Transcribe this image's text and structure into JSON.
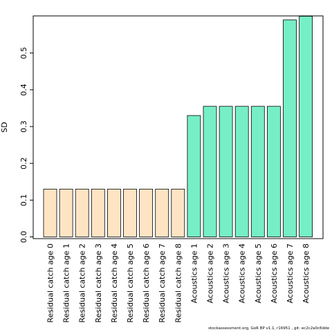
{
  "chart_data": {
    "type": "bar",
    "ylabel": "SD",
    "ylim": [
      0,
      0.6
    ],
    "yticks": [
      "0.0",
      "0.1",
      "0.2",
      "0.3",
      "0.4",
      "0.5"
    ],
    "categories": [
      "Residual catch age 0",
      "Residual catch age 1",
      "Residual catch age 2",
      "Residual catch age 3",
      "Residual catch age 4",
      "Residual catch age 5",
      "Residual catch age 6",
      "Residual catch age 7",
      "Residual catch age 8",
      "Acoustics age 1",
      "Acoustics age 2",
      "Acoustics age 3",
      "Acoustics age 4",
      "Acoustics age 5",
      "Acoustics age 6",
      "Acoustics age 7",
      "Acoustics age 8"
    ],
    "values": [
      0.13,
      0.13,
      0.13,
      0.13,
      0.13,
      0.13,
      0.13,
      0.13,
      0.13,
      0.33,
      0.355,
      0.355,
      0.355,
      0.355,
      0.355,
      0.59,
      0.6
    ],
    "colors": [
      "#FFE4C4",
      "#FFE4C4",
      "#FFE4C4",
      "#FFE4C4",
      "#FFE4C4",
      "#FFE4C4",
      "#FFE4C4",
      "#FFE4C4",
      "#FFE4C4",
      "#76EEC6",
      "#76EEC6",
      "#76EEC6",
      "#76EEC6",
      "#76EEC6",
      "#76EEC6",
      "#76EEC6",
      "#76EEC6"
    ],
    "grid": false
  },
  "footer": "stockassessment.org, GoR BP v1.1, r16951 , git: ec2c2a0c6dde"
}
